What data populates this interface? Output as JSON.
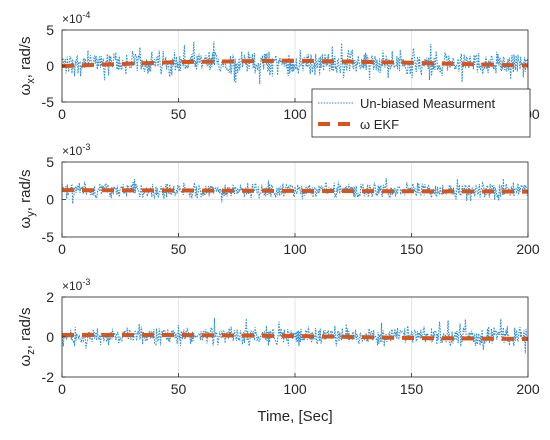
{
  "chart_data": [
    {
      "type": "line",
      "ylabel_base": "ω",
      "ylabel_sub": "x",
      "ylabel_unit": ", rad/s",
      "exponent_label": "×10",
      "exponent_power": "-4",
      "xlim": [
        0,
        200
      ],
      "ylim": [
        -5,
        5
      ],
      "xticks": [
        "0",
        "50",
        "100",
        "150",
        "200"
      ],
      "yticks": [
        "-5",
        "0",
        "5"
      ],
      "ytick_values": [
        -5,
        0,
        5
      ],
      "grid": true,
      "legend": {
        "position": "bottom-right",
        "entries": [
          "Un-biased Measurment",
          "ω EKF"
        ]
      },
      "series": [
        {
          "name": "Un-biased Measurment",
          "style": "dotted",
          "color": "#2b8fd1",
          "mean": 0.4,
          "noise_amplitude": 2.0,
          "peak": 3.6
        },
        {
          "name": "ω EKF",
          "style": "dashed",
          "color": "#d9541a",
          "x": [
            0,
            50,
            100,
            150,
            200
          ],
          "y": [
            0.0,
            0.55,
            0.75,
            0.45,
            0.05
          ]
        }
      ]
    },
    {
      "type": "line",
      "ylabel_base": "ω",
      "ylabel_sub": "y",
      "ylabel_unit": ", rad/s",
      "exponent_label": "×10",
      "exponent_power": "-3",
      "xlim": [
        0,
        200
      ],
      "ylim": [
        -5,
        5
      ],
      "xticks": [
        "0",
        "50",
        "100",
        "150",
        "200"
      ],
      "yticks": [
        "-5",
        "0",
        "5"
      ],
      "ytick_values": [
        -5,
        0,
        5
      ],
      "grid": true,
      "series": [
        {
          "name": "Un-biased Measurment",
          "style": "dotted",
          "color": "#2b8fd1",
          "mean": 1.2,
          "noise_amplitude": 1.2,
          "peak": 3.2
        },
        {
          "name": "ω EKF",
          "style": "dashed",
          "color": "#d9541a",
          "x": [
            0,
            50,
            100,
            150,
            200
          ],
          "y": [
            1.25,
            1.2,
            1.15,
            1.1,
            1.05
          ]
        }
      ]
    },
    {
      "type": "line",
      "ylabel_base": "ω",
      "ylabel_sub": "z",
      "ylabel_unit": ", rad/s",
      "exponent_label": "×10",
      "exponent_power": "-3",
      "xlabel": "Time, [Sec]",
      "xlim": [
        0,
        200
      ],
      "ylim": [
        -2,
        2
      ],
      "xticks": [
        "0",
        "50",
        "100",
        "150",
        "200"
      ],
      "yticks": [
        "-2",
        "0",
        "2"
      ],
      "ytick_values": [
        -2,
        0,
        2
      ],
      "grid": true,
      "series": [
        {
          "name": "Un-biased Measurment",
          "style": "dotted",
          "color": "#2b8fd1",
          "mean": 0.05,
          "noise_amplitude": 0.55,
          "peak": 0.95
        },
        {
          "name": "ω EKF",
          "style": "dashed",
          "color": "#d9541a",
          "x": [
            0,
            50,
            100,
            150,
            200
          ],
          "y": [
            0.1,
            0.1,
            0.05,
            -0.05,
            -0.1
          ]
        }
      ]
    }
  ]
}
